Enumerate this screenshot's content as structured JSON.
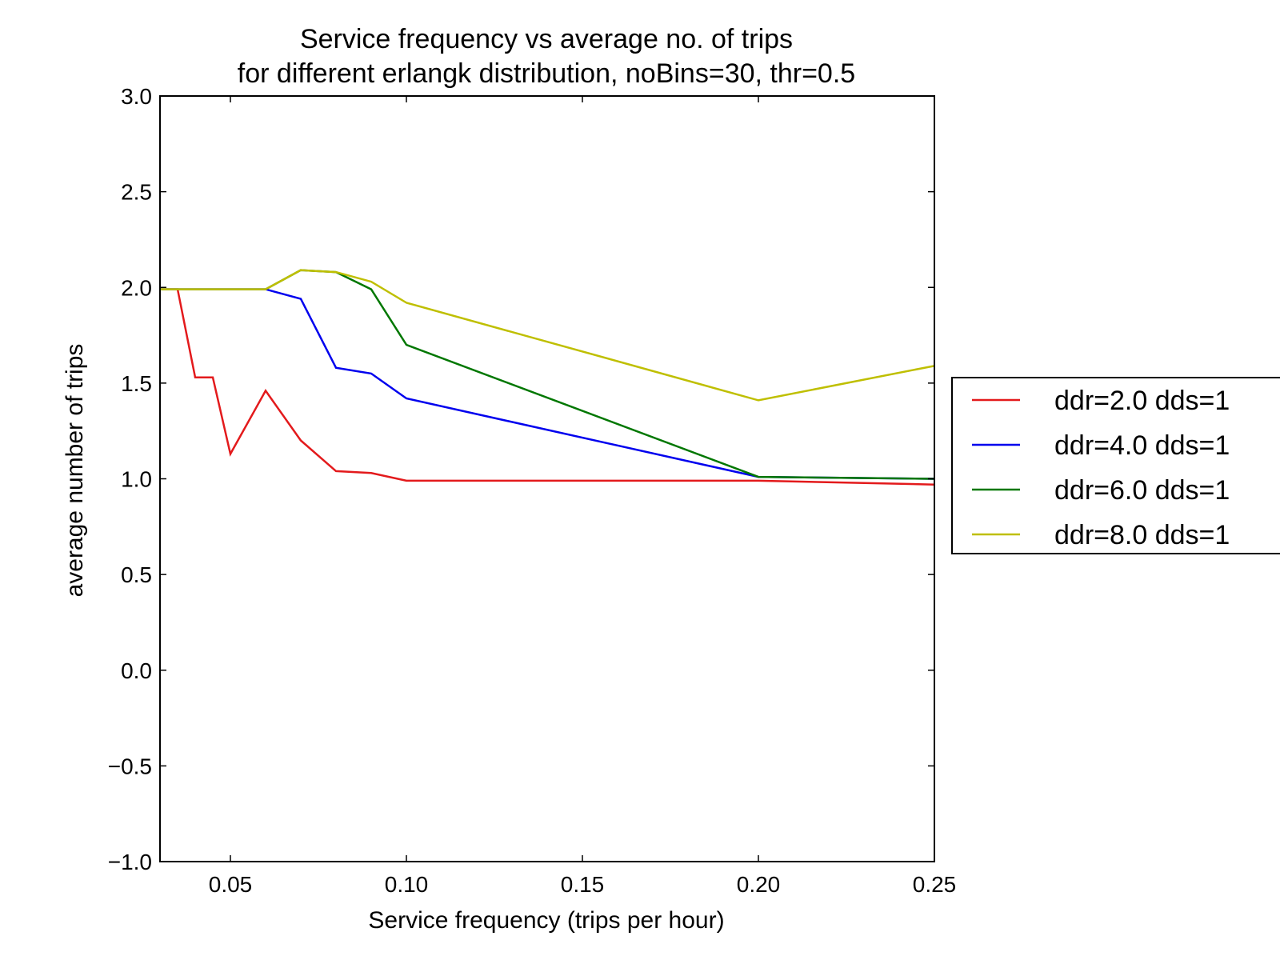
{
  "chart_data": {
    "type": "line",
    "title": "Service frequency vs average no. of trips",
    "subtitle": "for different erlangk distribution, noBins=30, thr=0.5",
    "xlabel": "Service frequency (trips per hour)",
    "ylabel": "average number of trips",
    "xlim": [
      0.03,
      0.25
    ],
    "ylim": [
      -1.0,
      3.0
    ],
    "xticks": [
      {
        "value": 0.05,
        "label": "0.05"
      },
      {
        "value": 0.1,
        "label": "0.10"
      },
      {
        "value": 0.15,
        "label": "0.15"
      },
      {
        "value": 0.2,
        "label": "0.20"
      },
      {
        "value": 0.25,
        "label": "0.25"
      }
    ],
    "yticks": [
      {
        "value": -1.0,
        "label": "−1.0"
      },
      {
        "value": -0.5,
        "label": "−0.5"
      },
      {
        "value": 0.0,
        "label": "0.0"
      },
      {
        "value": 0.5,
        "label": "0.5"
      },
      {
        "value": 1.0,
        "label": "1.0"
      },
      {
        "value": 1.5,
        "label": "1.5"
      },
      {
        "value": 2.0,
        "label": "2.0"
      },
      {
        "value": 2.5,
        "label": "2.5"
      },
      {
        "value": 3.0,
        "label": "3.0"
      }
    ],
    "grid": false,
    "legend_position": "right",
    "series": [
      {
        "name": "ddr=2.0 dds=1",
        "color": "#e31a1c",
        "x": [
          0.03,
          0.035,
          0.04,
          0.045,
          0.05,
          0.06,
          0.07,
          0.08,
          0.09,
          0.1,
          0.2,
          0.25
        ],
        "y": [
          1.99,
          1.99,
          1.53,
          1.53,
          1.13,
          1.46,
          1.2,
          1.04,
          1.03,
          0.99,
          0.99,
          0.97
        ]
      },
      {
        "name": "ddr=4.0 dds=1",
        "color": "#0000ee",
        "x": [
          0.03,
          0.06,
          0.07,
          0.08,
          0.09,
          0.1,
          0.2,
          0.25
        ],
        "y": [
          1.99,
          1.99,
          1.94,
          1.58,
          1.55,
          1.42,
          1.01,
          1.0
        ]
      },
      {
        "name": "ddr=6.0 dds=1",
        "color": "#007700",
        "x": [
          0.03,
          0.06,
          0.07,
          0.08,
          0.09,
          0.1,
          0.2,
          0.25
        ],
        "y": [
          1.99,
          1.99,
          2.09,
          2.08,
          1.99,
          1.7,
          1.01,
          1.0
        ]
      },
      {
        "name": "ddr=8.0 dds=1",
        "color": "#bfbf00",
        "x": [
          0.03,
          0.06,
          0.07,
          0.08,
          0.09,
          0.1,
          0.2,
          0.25
        ],
        "y": [
          1.99,
          1.99,
          2.09,
          2.08,
          2.03,
          1.92,
          1.41,
          1.59
        ]
      }
    ]
  }
}
